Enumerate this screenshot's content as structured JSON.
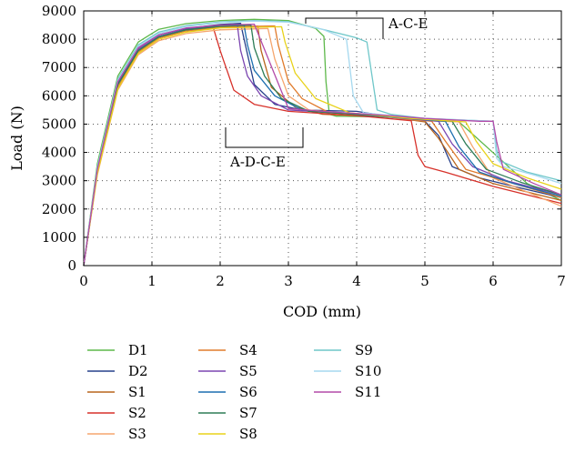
{
  "chart_data": {
    "type": "line",
    "xlabel": "COD (mm)",
    "ylabel": "Load (N)",
    "xlim": [
      0,
      7
    ],
    "ylim": [
      0,
      9000
    ],
    "x_ticks": [
      "0",
      "1",
      "2",
      "3",
      "4",
      "5",
      "6",
      "7"
    ],
    "y_ticks": [
      "0",
      "1000",
      "2000",
      "3000",
      "4000",
      "5000",
      "6000",
      "7000",
      "8000",
      "9000"
    ],
    "grid": "dotted",
    "legend_placement": "below",
    "annotations": [
      {
        "label": "A-C-E",
        "x_range": [
          3.25,
          4.4
        ]
      },
      {
        "label": "A-D-C-E",
        "x_range": [
          2.1,
          3.25
        ]
      }
    ],
    "series": [
      {
        "name": "D1",
        "color": "#5db84a",
        "x": [
          0,
          0.2,
          0.5,
          0.8,
          1.1,
          1.5,
          2.0,
          2.5,
          3.0,
          3.4,
          3.52,
          3.55,
          3.6,
          3.7,
          4.5,
          5.5,
          6.5,
          7.0
        ],
        "y": [
          0,
          3600,
          6700,
          7900,
          8350,
          8550,
          8660,
          8700,
          8660,
          8380,
          8100,
          6500,
          5350,
          5280,
          5250,
          5080,
          2900,
          2300
        ]
      },
      {
        "name": "D2",
        "color": "#27408b",
        "x": [
          0,
          0.2,
          0.5,
          0.8,
          1.1,
          1.5,
          2.0,
          2.3,
          2.35,
          2.5,
          2.8,
          3.2,
          4.0,
          4.8,
          5.0,
          5.2,
          5.4,
          5.8,
          6.3,
          7.0
        ],
        "y": [
          0,
          3400,
          6500,
          7700,
          8150,
          8380,
          8520,
          8560,
          8000,
          6400,
          5700,
          5500,
          5450,
          5150,
          5100,
          4600,
          3500,
          3100,
          2800,
          2400
        ]
      },
      {
        "name": "S1",
        "color": "#b8651b",
        "x": [
          0,
          0.2,
          0.5,
          0.8,
          1.1,
          1.5,
          2.0,
          2.55,
          2.6,
          2.75,
          3.1,
          3.5,
          4.5,
          5.0,
          5.2,
          5.5,
          6.0,
          7.0
        ],
        "y": [
          0,
          3300,
          6300,
          7550,
          8050,
          8300,
          8420,
          8460,
          7600,
          6300,
          5600,
          5350,
          5250,
          5080,
          4500,
          3400,
          2900,
          2300
        ]
      },
      {
        "name": "S2",
        "color": "#d7312a",
        "x": [
          0,
          0.2,
          0.5,
          0.8,
          1.1,
          1.5,
          1.9,
          2.0,
          2.05,
          2.1,
          2.2,
          2.5,
          3.0,
          4.0,
          4.8,
          4.9,
          5.0,
          5.3,
          6.0,
          7.0
        ],
        "y": [
          0,
          3400,
          6400,
          7600,
          8050,
          8300,
          8400,
          7600,
          7250,
          6900,
          6200,
          5700,
          5450,
          5300,
          5120,
          3900,
          3500,
          3300,
          2800,
          2200
        ]
      },
      {
        "name": "S3",
        "color": "#f5a66e",
        "x": [
          0,
          0.2,
          0.5,
          0.8,
          1.1,
          1.5,
          2.0,
          2.7,
          2.8,
          3.0,
          3.3,
          4.0,
          5.0,
          5.5,
          5.7,
          6.0,
          7.0
        ],
        "y": [
          0,
          3200,
          6200,
          7450,
          7950,
          8200,
          8330,
          8380,
          7300,
          6000,
          5500,
          5350,
          5120,
          5080,
          4200,
          3100,
          2100
        ]
      },
      {
        "name": "S4",
        "color": "#e07b2c",
        "x": [
          0,
          0.2,
          0.5,
          0.8,
          1.1,
          1.5,
          2.0,
          2.8,
          2.85,
          3.0,
          3.2,
          3.6,
          4.5,
          5.1,
          5.3,
          5.6,
          6.3,
          7.0
        ],
        "y": [
          0,
          3300,
          6300,
          7550,
          8050,
          8300,
          8430,
          8470,
          7800,
          6500,
          5900,
          5400,
          5250,
          5100,
          4400,
          3400,
          2900,
          2400
        ]
      },
      {
        "name": "S5",
        "color": "#7b45b0",
        "x": [
          0,
          0.2,
          0.5,
          0.8,
          1.1,
          1.5,
          2.0,
          2.25,
          2.3,
          2.4,
          2.6,
          3.0,
          4.0,
          5.2,
          5.4,
          5.7,
          6.2,
          7.0
        ],
        "y": [
          0,
          3400,
          6450,
          7650,
          8100,
          8350,
          8480,
          8510,
          7600,
          6700,
          6000,
          5500,
          5350,
          5100,
          4300,
          3500,
          3000,
          2500
        ]
      },
      {
        "name": "S6",
        "color": "#1c6fb0",
        "x": [
          0,
          0.2,
          0.5,
          0.8,
          1.1,
          1.5,
          2.0,
          2.35,
          2.4,
          2.5,
          2.8,
          3.2,
          4.2,
          5.3,
          5.5,
          5.8,
          6.3,
          7.0
        ],
        "y": [
          0,
          3350,
          6400,
          7600,
          8080,
          8330,
          8460,
          8490,
          7800,
          6900,
          6000,
          5500,
          5300,
          5100,
          4200,
          3300,
          2900,
          2450
        ]
      },
      {
        "name": "S7",
        "color": "#2e7d57",
        "x": [
          0,
          0.2,
          0.5,
          0.8,
          1.1,
          1.5,
          2.0,
          2.45,
          2.5,
          2.65,
          2.9,
          3.3,
          4.3,
          5.4,
          5.6,
          5.9,
          6.4,
          7.0
        ],
        "y": [
          0,
          3350,
          6400,
          7600,
          8080,
          8330,
          8460,
          8500,
          7700,
          6700,
          5900,
          5450,
          5300,
          5100,
          4300,
          3400,
          2950,
          2500
        ]
      },
      {
        "name": "S8",
        "color": "#e8d21a",
        "x": [
          0,
          0.2,
          0.5,
          0.8,
          1.1,
          1.5,
          2.0,
          2.9,
          2.95,
          3.1,
          3.4,
          3.9,
          4.8,
          5.6,
          5.75,
          6.0,
          6.5,
          7.0
        ],
        "y": [
          0,
          3250,
          6250,
          7500,
          8000,
          8250,
          8400,
          8440,
          7900,
          6800,
          5900,
          5400,
          5200,
          5080,
          4400,
          3600,
          3100,
          2700
        ]
      },
      {
        "name": "S9",
        "color": "#6fc7c9",
        "x": [
          0,
          0.2,
          0.5,
          0.8,
          1.1,
          1.5,
          2.0,
          2.5,
          3.0,
          3.5,
          4.0,
          4.15,
          4.3,
          4.5,
          5.0,
          6.0,
          6.05,
          6.1,
          6.5,
          7.0
        ],
        "y": [
          0,
          3500,
          6600,
          7800,
          8250,
          8480,
          8610,
          8660,
          8620,
          8350,
          8050,
          7900,
          5500,
          5350,
          5200,
          5100,
          4100,
          3700,
          3300,
          3000
        ]
      },
      {
        "name": "S10",
        "color": "#a6d9ef",
        "x": [
          0,
          0.2,
          0.5,
          0.8,
          1.1,
          1.5,
          2.0,
          2.5,
          3.0,
          3.5,
          3.85,
          3.95,
          4.1,
          4.5,
          5.0,
          6.0,
          6.05,
          6.15,
          6.6,
          7.0
        ],
        "y": [
          0,
          3450,
          6550,
          7750,
          8200,
          8450,
          8590,
          8640,
          8600,
          8350,
          8000,
          6000,
          5400,
          5300,
          5200,
          5100,
          3800,
          3500,
          3200,
          2900
        ]
      },
      {
        "name": "S11",
        "color": "#b34aa8",
        "x": [
          0,
          0.2,
          0.5,
          0.8,
          1.1,
          1.5,
          2.0,
          2.5,
          3.0,
          3.5,
          4.5,
          5.0,
          5.8,
          6.0,
          6.05,
          6.15,
          6.6,
          7.0
        ],
        "y": [
          0,
          3400,
          6500,
          7700,
          8150,
          8400,
          8500,
          8530,
          5550,
          5450,
          5300,
          5200,
          5100,
          5100,
          4400,
          3400,
          2900,
          2500
        ]
      }
    ]
  }
}
